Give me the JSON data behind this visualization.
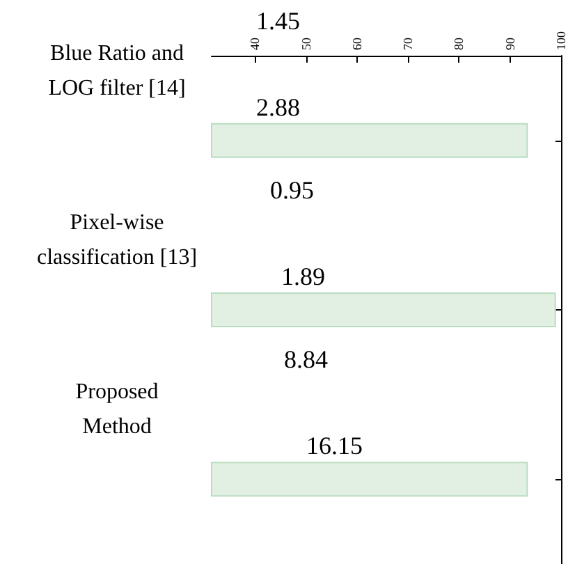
{
  "chart_data": {
    "type": "bar",
    "orientation": "horizontal",
    "categories": [
      "Blue Ratio and\nLOG filter [14]",
      "Pixel-wise\nclassification [13]",
      "Proposed\nMethod"
    ],
    "values": [
      93.5,
      99,
      93.5
    ],
    "color": "#e2efe3",
    "xlim": [
      31.5,
      100
    ],
    "xticks": [
      40,
      50,
      60,
      70,
      80,
      90,
      100
    ],
    "grid": false,
    "annotations": [
      "1.45",
      "2.88",
      "0.95",
      "1.89",
      "8.84",
      "16.15"
    ]
  }
}
